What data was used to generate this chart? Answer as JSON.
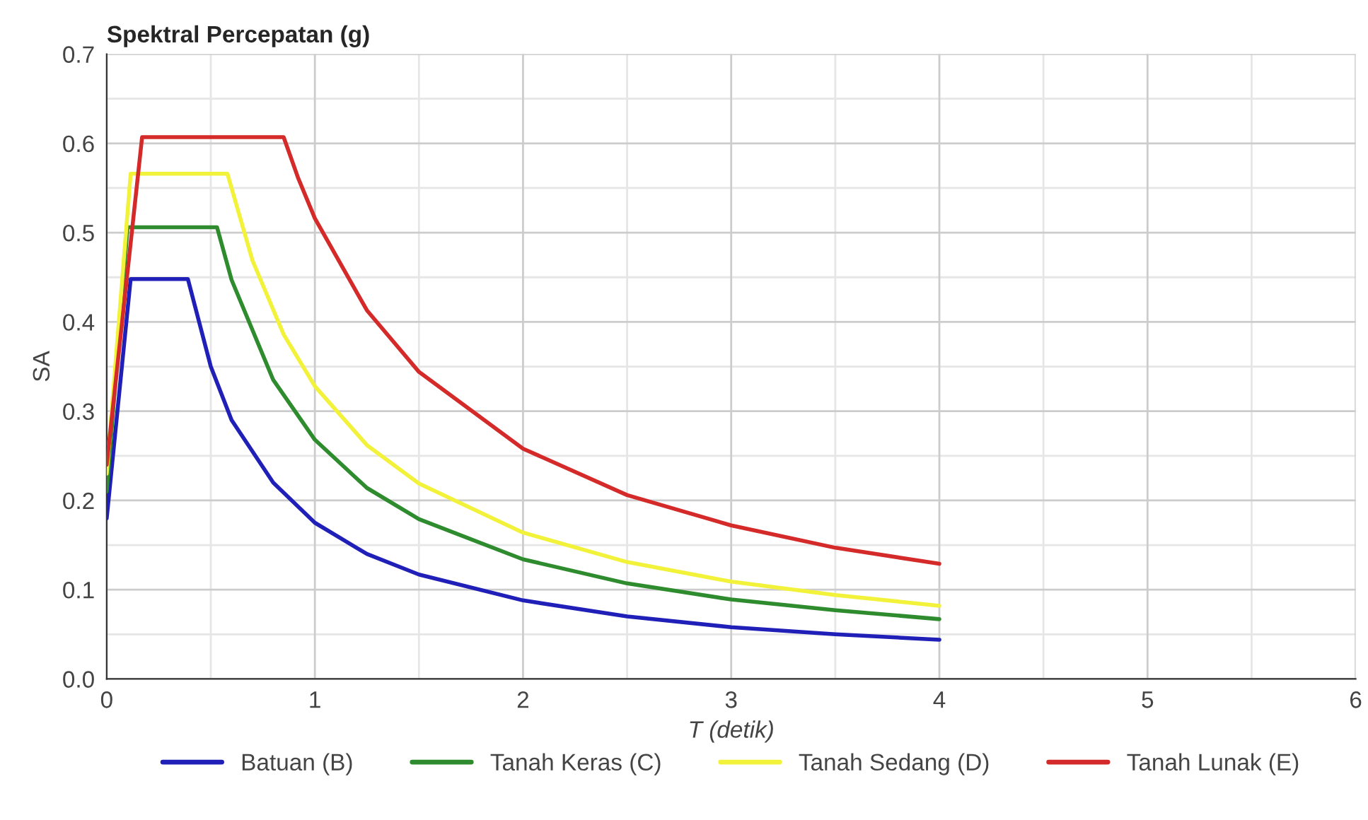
{
  "chart_data": {
    "type": "line",
    "title": "Spektral Percepatan (g)",
    "xlabel": "T (detik)",
    "ylabel": "SA",
    "xlim": [
      0,
      6
    ],
    "ylim": [
      0,
      0.7
    ],
    "xticks": [
      0,
      1,
      2,
      3,
      4,
      5,
      6
    ],
    "yticks": [
      {
        "value": 0,
        "label": "0.0"
      },
      0.1,
      0.2,
      0.3,
      0.4,
      0.5,
      0.6,
      0.7
    ],
    "grid": true,
    "legend": "bottom",
    "line_style": "solid",
    "marker": "none",
    "series": [
      {
        "name": "Batuan (B)",
        "color": "#2020b8",
        "x": [
          0,
          0.115,
          0.39,
          0.5,
          0.6,
          0.8,
          1,
          1.25,
          1.5,
          2,
          2.5,
          3,
          3.5,
          4
        ],
        "values": [
          0.18,
          0.448,
          0.448,
          0.35,
          0.29,
          0.22,
          0.175,
          0.14,
          0.117,
          0.088,
          0.07,
          0.058,
          0.05,
          0.044
        ]
      },
      {
        "name": "Tanah Keras (C)",
        "color": "#2e8b2e",
        "x": [
          0,
          0.1,
          0.53,
          0.6,
          0.8,
          1,
          1.25,
          1.5,
          2,
          2.5,
          3,
          3.5,
          4
        ],
        "values": [
          0.21,
          0.506,
          0.506,
          0.447,
          0.335,
          0.268,
          0.214,
          0.179,
          0.134,
          0.107,
          0.089,
          0.077,
          0.067
        ]
      },
      {
        "name": "Tanah Sedang (D)",
        "color": "#f2f23a",
        "x": [
          0,
          0.115,
          0.58,
          0.7,
          0.85,
          1,
          1.25,
          1.5,
          2,
          2.5,
          3,
          3.5,
          4
        ],
        "values": [
          0.23,
          0.566,
          0.566,
          0.469,
          0.386,
          0.328,
          0.262,
          0.219,
          0.164,
          0.131,
          0.109,
          0.094,
          0.082
        ]
      },
      {
        "name": "Tanah Lunak (E)",
        "color": "#d42a2a",
        "x": [
          0,
          0.17,
          0.85,
          0.92,
          1,
          1.25,
          1.5,
          2,
          2.5,
          3,
          3.5,
          4
        ],
        "values": [
          0.24,
          0.607,
          0.607,
          0.561,
          0.516,
          0.413,
          0.344,
          0.258,
          0.206,
          0.172,
          0.147,
          0.129
        ]
      }
    ]
  }
}
